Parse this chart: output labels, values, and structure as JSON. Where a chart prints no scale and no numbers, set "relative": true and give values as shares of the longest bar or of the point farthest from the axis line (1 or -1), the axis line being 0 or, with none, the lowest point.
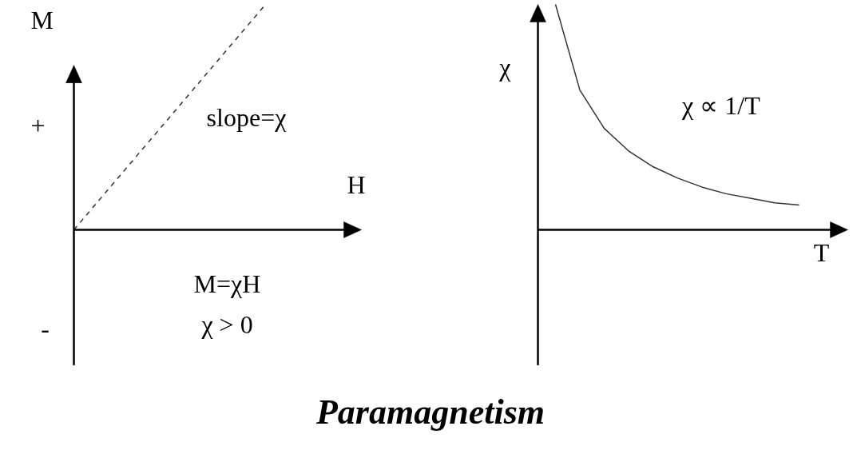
{
  "chart_data": [
    {
      "type": "line",
      "relative": true,
      "xlabel": "H",
      "ylabel": "M",
      "line_style": "dashed",
      "color": "#333333",
      "grid": false,
      "categories": [
        null,
        null,
        null,
        null,
        null,
        null,
        null
      ],
      "values": [
        0,
        0.25,
        0.5,
        0.75,
        1,
        null,
        null
      ],
      "annotations": [
        "slope=χ",
        "M=χH",
        "χ > 0",
        "+",
        "-"
      ]
    },
    {
      "type": "line",
      "relative": true,
      "xlabel": "T",
      "ylabel": "χ",
      "line_style": "solid",
      "color": "#333333",
      "grid": false,
      "categories": [
        null,
        null,
        null,
        null,
        null,
        null,
        null,
        null,
        null,
        null,
        null,
        null,
        null
      ],
      "values": [
        1,
        0.62,
        0.45,
        0.35,
        0.28,
        0.23,
        0.19,
        0.16,
        0.14,
        0.12,
        0.11,
        null,
        null
      ],
      "annotations": [
        "χ ∝ 1/T"
      ]
    },
    {
      "type": "other",
      "title": "Paramagnetism"
    }
  ]
}
